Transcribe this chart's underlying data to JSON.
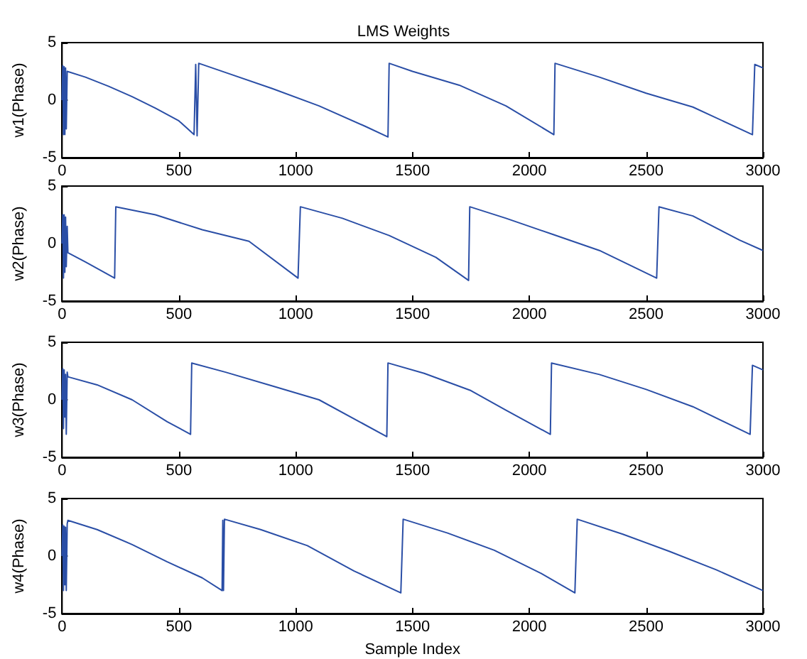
{
  "chart_data": [
    {
      "type": "line",
      "title": "LMS Weights",
      "ylabel": "w1(Phase)",
      "xlim": [
        0,
        3000
      ],
      "xticks": [
        0,
        500,
        1000,
        1500,
        2000,
        2500,
        3000
      ],
      "ylim": [
        -5,
        5
      ],
      "yticks": [
        -5,
        0,
        5
      ],
      "grid": false,
      "marker": "none",
      "line_style": "solid",
      "series": [
        {
          "color": "#2a4ea6",
          "x": [
            0,
            3,
            6,
            9,
            12,
            15,
            18,
            22,
            100,
            200,
            300,
            400,
            500,
            565,
            572,
            578,
            585,
            700,
            900,
            1100,
            1300,
            1395,
            1400,
            1500,
            1700,
            1900,
            2105,
            2110,
            2300,
            2500,
            2700,
            2955,
            2965,
            3000
          ],
          "values": [
            0,
            3,
            -3,
            2.9,
            -3,
            2.8,
            -2.5,
            2.5,
            2.0,
            1.2,
            0.3,
            -0.7,
            -1.8,
            -3,
            3.1,
            -3.1,
            3.2,
            2.4,
            1.0,
            -0.5,
            -2.3,
            -3.2,
            3.2,
            2.5,
            1.3,
            -0.5,
            -3,
            3.2,
            2.0,
            0.6,
            -0.6,
            -3,
            3.1,
            2.8
          ]
        }
      ]
    },
    {
      "type": "line",
      "ylabel": "w2(Phase)",
      "xlim": [
        0,
        3000
      ],
      "xticks": [
        0,
        500,
        1000,
        1500,
        2000,
        2500,
        3000
      ],
      "ylim": [
        -5,
        5
      ],
      "yticks": [
        -5,
        0,
        5
      ],
      "grid": false,
      "marker": "none",
      "line_style": "solid",
      "series": [
        {
          "color": "#2a4ea6",
          "x": [
            0,
            3,
            6,
            9,
            12,
            15,
            18,
            22,
            25,
            100,
            225,
            230,
            400,
            600,
            800,
            1010,
            1020,
            1200,
            1400,
            1600,
            1740,
            1745,
            1900,
            2100,
            2300,
            2545,
            2555,
            2700,
            2900,
            3000
          ],
          "values": [
            0,
            2.5,
            -3,
            2.5,
            -2.5,
            2.3,
            -2,
            1.5,
            -0.8,
            -1.6,
            -3,
            3.2,
            2.5,
            1.2,
            0.2,
            -3,
            3.2,
            2.2,
            0.7,
            -1.2,
            -3.2,
            3.2,
            2.2,
            0.8,
            -0.6,
            -3,
            3.2,
            2.4,
            0.3,
            -0.6
          ]
        }
      ]
    },
    {
      "type": "line",
      "ylabel": "w3(Phase)",
      "xlim": [
        0,
        3000
      ],
      "xticks": [
        0,
        500,
        1000,
        1500,
        2000,
        2500,
        3000
      ],
      "ylim": [
        -5,
        5
      ],
      "yticks": [
        -5,
        0,
        5
      ],
      "grid": false,
      "marker": "none",
      "line_style": "solid",
      "series": [
        {
          "color": "#2a4ea6",
          "x": [
            0,
            3,
            6,
            9,
            12,
            15,
            18,
            22,
            25,
            150,
            300,
            450,
            550,
            555,
            700,
            900,
            1100,
            1390,
            1395,
            1550,
            1750,
            1900,
            2090,
            2095,
            2300,
            2500,
            2700,
            2945,
            2955,
            3000
          ],
          "values": [
            0,
            2.7,
            -2.5,
            2.6,
            -1.5,
            2.2,
            -3,
            2.4,
            2,
            1.3,
            0,
            -1.9,
            -3,
            3.2,
            2.4,
            1.2,
            0,
            -3.2,
            3.2,
            2.3,
            0.8,
            -0.9,
            -3,
            3.2,
            2.2,
            0.9,
            -0.6,
            -3,
            3,
            2.6
          ]
        }
      ]
    },
    {
      "type": "line",
      "ylabel": "w4(Phase)",
      "xlabel": "Sample Index",
      "xlim": [
        0,
        3000
      ],
      "xticks": [
        0,
        500,
        1000,
        1500,
        2000,
        2500,
        3000
      ],
      "ylim": [
        -5,
        5
      ],
      "yticks": [
        -5,
        0,
        5
      ],
      "grid": false,
      "marker": "none",
      "line_style": "solid",
      "series": [
        {
          "color": "#2a4ea6",
          "x": [
            0,
            3,
            6,
            9,
            12,
            15,
            18,
            22,
            25,
            150,
            300,
            450,
            600,
            685,
            688,
            691,
            695,
            850,
            1050,
            1250,
            1450,
            1460,
            1650,
            1850,
            2050,
            2195,
            2205,
            2400,
            2600,
            2800,
            3000
          ],
          "values": [
            0,
            2.7,
            -3,
            2.6,
            -2.5,
            2.5,
            -3,
            2.8,
            3.1,
            2.3,
            1.0,
            -0.5,
            -1.9,
            -3,
            3.1,
            -3,
            3.2,
            2.3,
            0.9,
            -1.3,
            -3.2,
            3.2,
            2.0,
            0.5,
            -1.5,
            -3.2,
            3.2,
            1.9,
            0.4,
            -1.2,
            -3
          ]
        }
      ]
    }
  ]
}
